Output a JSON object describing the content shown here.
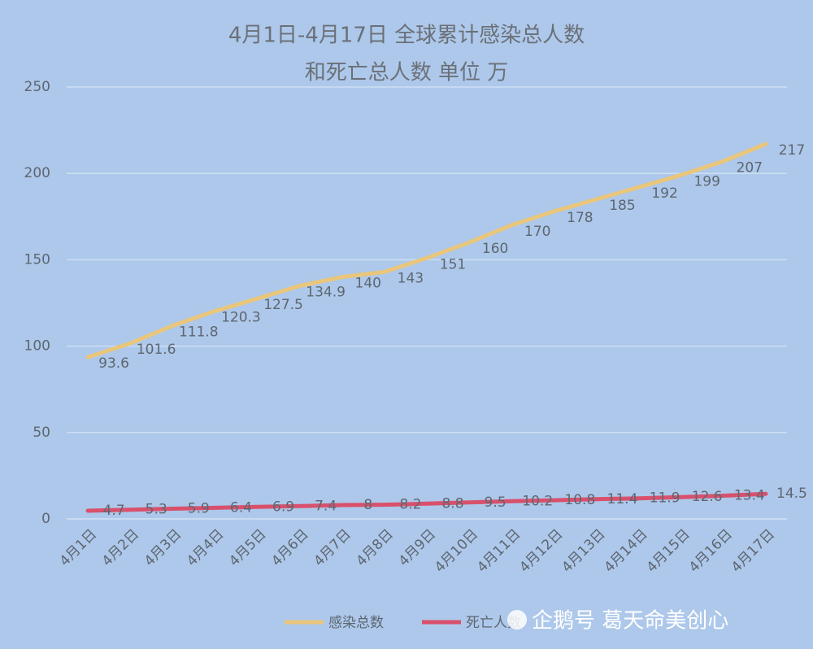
{
  "chart_data": {
    "type": "line",
    "title": [
      "4月1日-4月17日 全球累计感染总人数",
      "和死亡总人数 单位 万"
    ],
    "categories": [
      "4月1日",
      "4月2日",
      "4月3日",
      "4月4日",
      "4月5日",
      "4月6日",
      "4月7日",
      "4月8日",
      "4月9日",
      "4月10日",
      "4月11日",
      "4月12日",
      "4月13日",
      "4月14日",
      "4月15日",
      "4月16日",
      "4月17日"
    ],
    "series": [
      {
        "name": "感染总数",
        "color": "#e9c67b",
        "values": [
          93.6,
          101.6,
          111.8,
          120.3,
          127.5,
          134.9,
          140,
          143,
          151,
          160,
          170,
          178,
          185,
          192,
          199,
          207,
          217
        ]
      },
      {
        "name": "死亡人数",
        "color": "#d9506c",
        "values": [
          4.7,
          5.3,
          5.9,
          6.4,
          6.9,
          7.4,
          8,
          8.2,
          8.8,
          9.5,
          10.2,
          10.8,
          11.4,
          11.9,
          12.6,
          13.4,
          14.5
        ]
      }
    ],
    "ylim": [
      0,
      250
    ],
    "yticks": [
      0,
      50,
      100,
      150,
      200,
      250
    ],
    "grid": true,
    "legend": "bottom",
    "watermark": "企鹅号 葛天命美创心"
  }
}
